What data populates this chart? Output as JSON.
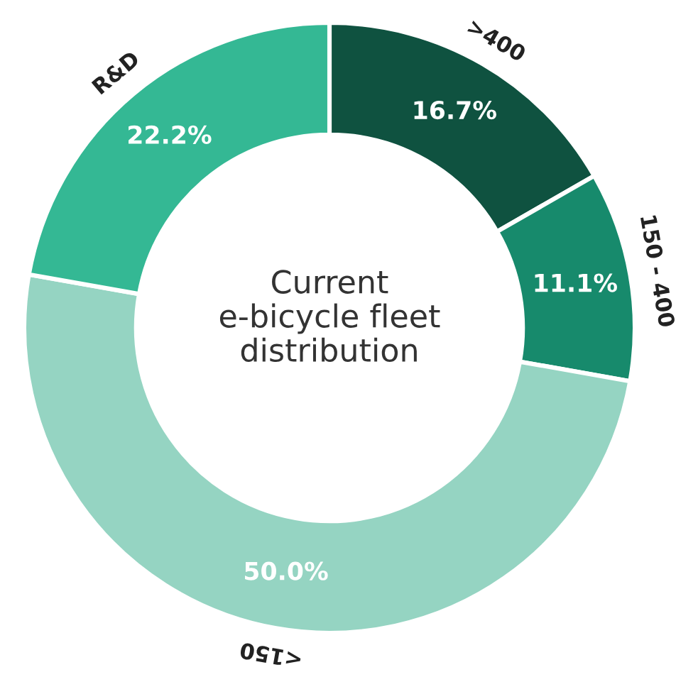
{
  "chart_data": {
    "type": "donut",
    "title": "Current\ne-bicycle fleet\ndistribution",
    "categories": [
      ">400",
      "150 - 400",
      "<150",
      "R&D"
    ],
    "values": [
      16.7,
      11.1,
      50.0,
      22.2
    ],
    "colors": [
      "#0f5240",
      "#178a6c",
      "#95d4c2",
      "#34b894"
    ],
    "value_labels": [
      "16.7%",
      "11.1%",
      "50.0%",
      "22.2%"
    ]
  }
}
